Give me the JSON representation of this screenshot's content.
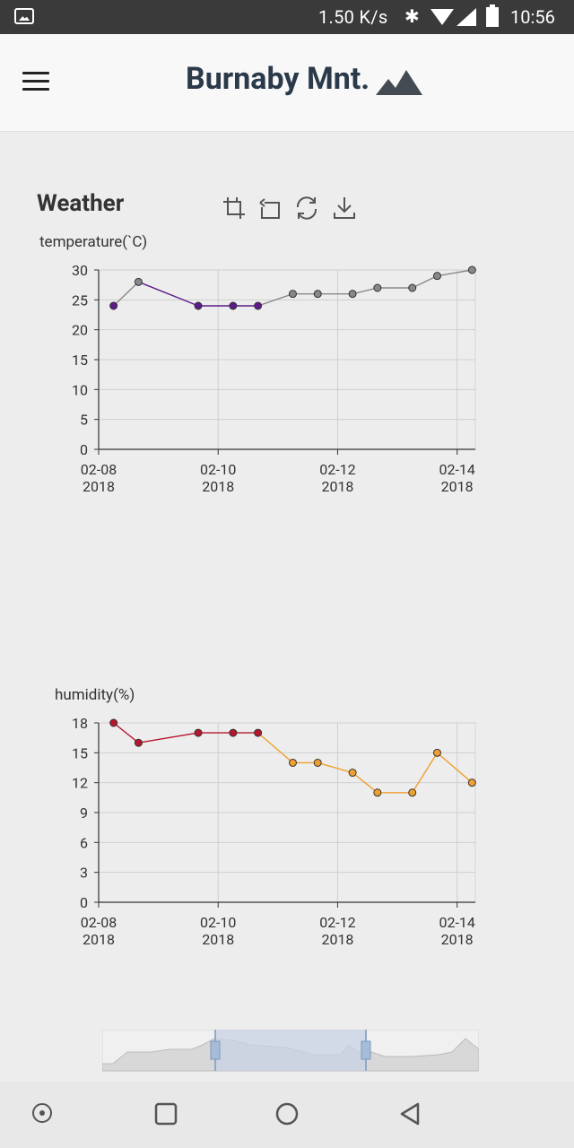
{
  "status_bar": {
    "network_speed": "1.50 K/s",
    "time": "10:56",
    "icons": [
      "image-icon",
      "bluetooth-icon",
      "wifi-icon",
      "cell-signal-icon",
      "battery-icon"
    ]
  },
  "header": {
    "title": "Burnaby Mnt.",
    "menu_icon": "hamburger-menu-icon",
    "logo_icon": "mountain-icon"
  },
  "section": {
    "title": "Weather",
    "tools": [
      "crop-zoom-icon",
      "zoom-reset-icon",
      "refresh-icon",
      "download-icon"
    ]
  },
  "chart_data": [
    {
      "type": "line",
      "ylabel": "temperature(`C)",
      "ylim": [
        0,
        30
      ],
      "yticks": [
        0,
        5,
        10,
        15,
        20,
        25,
        30
      ],
      "xticks": [
        {
          "date": "2018-02-08",
          "label1": "02-08",
          "label2": "2018"
        },
        {
          "date": "2018-02-10",
          "label1": "02-10",
          "label2": "2018"
        },
        {
          "date": "2018-02-12",
          "label1": "02-12",
          "label2": "2018"
        },
        {
          "date": "2018-02-14",
          "label1": "02-14",
          "label2": "2018"
        }
      ],
      "x": [
        "2018-02-08T06:00",
        "2018-02-08T16:00",
        "2018-02-09T16:00",
        "2018-02-10T06:00",
        "2018-02-10T16:00",
        "2018-02-11T06:00",
        "2018-02-11T16:00",
        "2018-02-12T06:00",
        "2018-02-12T16:00",
        "2018-02-13T06:00",
        "2018-02-13T16:00",
        "2018-02-14T06:00"
      ],
      "values": [
        24,
        28,
        24,
        24,
        24,
        26,
        26,
        26,
        27,
        27,
        29,
        30
      ],
      "colors": [
        "#5c1a8a",
        "#888888",
        "#5c1a8a",
        "#5c1a8a",
        "#5c1a8a",
        "#888888",
        "#888888",
        "#888888",
        "#888888",
        "#888888",
        "#888888",
        "#888888"
      ],
      "grid": true
    },
    {
      "type": "line",
      "ylabel": "humidity(%)",
      "ylim": [
        0,
        18
      ],
      "yticks": [
        0,
        3,
        6,
        9,
        12,
        15,
        18
      ],
      "xticks": [
        {
          "date": "2018-02-08",
          "label1": "02-08",
          "label2": "2018"
        },
        {
          "date": "2018-02-10",
          "label1": "02-10",
          "label2": "2018"
        },
        {
          "date": "2018-02-12",
          "label1": "02-12",
          "label2": "2018"
        },
        {
          "date": "2018-02-14",
          "label1": "02-14",
          "label2": "2018"
        }
      ],
      "x": [
        "2018-02-08T06:00",
        "2018-02-08T16:00",
        "2018-02-09T16:00",
        "2018-02-10T06:00",
        "2018-02-10T16:00",
        "2018-02-11T06:00",
        "2018-02-11T16:00",
        "2018-02-12T06:00",
        "2018-02-12T16:00",
        "2018-02-13T06:00",
        "2018-02-13T16:00",
        "2018-02-14T06:00"
      ],
      "values": [
        18,
        16,
        17,
        17,
        17,
        14,
        14,
        13,
        11,
        11,
        15,
        12
      ],
      "colors": [
        "#b5172f",
        "#b5172f",
        "#b5172f",
        "#b5172f",
        "#b5172f",
        "#f0a030",
        "#f0a030",
        "#f0a030",
        "#f0a030",
        "#f0a030",
        "#f0a030",
        "#f0a030"
      ],
      "grid": true
    }
  ],
  "navigation_bar": {
    "icons": [
      "dot-circle-icon",
      "recents-square-icon",
      "home-circle-icon",
      "back-triangle-icon"
    ]
  },
  "colors": {
    "title": "#2b3a4a",
    "header_bg": "#f8f8f8",
    "page_bg": "#ededed",
    "slider_selection": "#c7d3e3"
  }
}
